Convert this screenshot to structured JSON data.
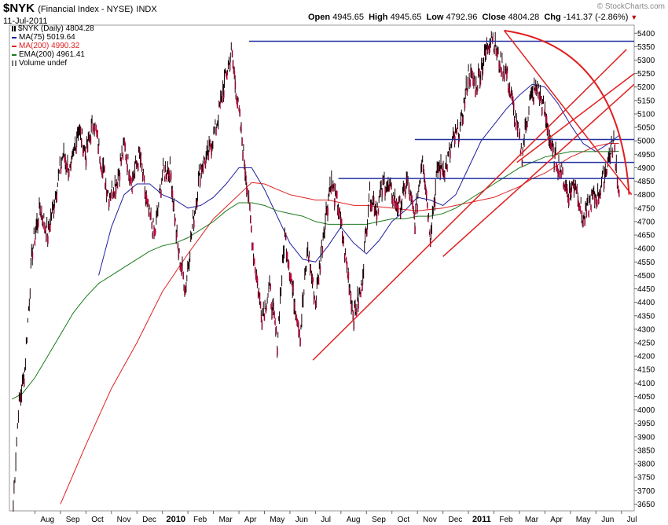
{
  "header": {
    "symbol": "$NYK",
    "name": "(Financial Index - NYSE)",
    "exchange": "INDX",
    "date": "11-Jul-2011",
    "brand": "© StockCharts.com",
    "open_label": "Open",
    "open": "4945.65",
    "high_label": "High",
    "high": "4945.65",
    "low_label": "Low",
    "low": "4792.96",
    "close_label": "Close",
    "close": "4804.28",
    "chg_label": "Chg",
    "chg": "-141.37 (-2.86%)"
  },
  "legend": [
    {
      "text": "$NYK (Daily) 4804.28",
      "color": "#000000",
      "kind": "bar"
    },
    {
      "text": "MA(75) 5019.64",
      "color": "#1f1fa0",
      "kind": "line"
    },
    {
      "text": "MA(200) 4990.32",
      "color": "#e02020",
      "kind": "line"
    },
    {
      "text": "EMA(200) 4961.41",
      "color": "#1a7a1a",
      "kind": "line"
    },
    {
      "text": "Volume undef",
      "color": "#777777",
      "kind": "vol"
    }
  ],
  "chart_data": {
    "type": "line",
    "title": "$NYK (Financial Index - NYSE)",
    "y_ticks": [
      3650,
      3700,
      3750,
      3800,
      3850,
      3900,
      3950,
      4000,
      4050,
      4100,
      4150,
      4200,
      4250,
      4300,
      4350,
      4400,
      4450,
      4500,
      4550,
      4600,
      4650,
      4700,
      4750,
      4800,
      4850,
      4900,
      4950,
      5000,
      5050,
      5100,
      5150,
      5200,
      5250,
      5300,
      5350,
      5400
    ],
    "ylim": [
      3625,
      5430
    ],
    "x_ticks": [
      "Aug",
      "Sep",
      "Oct",
      "Nov",
      "Dec",
      "2010",
      "Feb",
      "Mar",
      "Apr",
      "May",
      "Jun",
      "Jul",
      "Aug",
      "Sep",
      "Oct",
      "Nov",
      "Dec",
      "2011",
      "Feb",
      "Mar",
      "Apr",
      "May",
      "Jun",
      "Jul"
    ],
    "x_tick_bold": [
      "2010",
      "2011"
    ],
    "start_month": "Jul 2009",
    "xlim_months": [
      0,
      24.5
    ],
    "price_series": {
      "name": "$NYK (Daily)",
      "color": "#000000",
      "x_months": [
        0.15,
        0.35,
        0.6,
        0.9,
        1.2,
        1.5,
        1.8,
        2.1,
        2.4,
        2.7,
        3.0,
        3.3,
        3.6,
        3.9,
        4.2,
        4.5,
        4.8,
        5.1,
        5.4,
        5.7,
        6.0,
        6.3,
        6.6,
        6.9,
        7.2,
        7.5,
        7.8,
        8.1,
        8.4,
        8.7,
        9.0,
        9.3,
        9.6,
        9.9,
        10.2,
        10.5,
        10.8,
        11.1,
        11.4,
        11.7,
        12.0,
        12.3,
        12.6,
        12.9,
        13.2,
        13.5,
        13.8,
        14.1,
        14.4,
        14.7,
        15.0,
        15.3,
        15.6,
        15.9,
        16.2,
        16.5,
        16.8,
        17.1,
        17.4,
        17.7,
        18.0,
        18.3,
        18.6,
        18.9,
        19.2,
        19.5,
        19.8,
        20.1,
        20.4,
        20.7,
        21.0,
        21.3,
        21.6,
        21.9,
        22.2,
        22.5,
        22.8,
        23.1,
        23.4,
        23.7,
        23.9
      ],
      "values": [
        3650,
        4000,
        4150,
        4600,
        4750,
        4650,
        4800,
        4950,
        4880,
        5050,
        4950,
        5080,
        4920,
        4800,
        4850,
        4980,
        4850,
        4950,
        4750,
        4650,
        4880,
        4900,
        4600,
        4450,
        4700,
        4900,
        4950,
        5050,
        5200,
        5330,
        5100,
        4850,
        4550,
        4350,
        4450,
        4250,
        4650,
        4450,
        4280,
        4600,
        4400,
        4650,
        4850,
        4750,
        4550,
        4350,
        4450,
        4800,
        4750,
        4850,
        4800,
        4750,
        4850,
        4700,
        4950,
        4650,
        4900,
        4900,
        5000,
        5050,
        5250,
        5200,
        5300,
        5400,
        5300,
        5250,
        5100,
        4950,
        5150,
        5200,
        5100,
        4950,
        4900,
        4800,
        4850,
        4700,
        4780,
        4800,
        4900,
        5000,
        4804.28
      ]
    },
    "series": [
      {
        "name": "MA(75)",
        "color": "#1f1fa0",
        "x_months": [
          3.5,
          4.0,
          4.5,
          5.0,
          5.5,
          6.0,
          6.5,
          7.0,
          7.5,
          8.0,
          8.5,
          9.0,
          9.5,
          10.0,
          10.5,
          11.0,
          11.5,
          12.0,
          12.5,
          13.0,
          13.5,
          14.0,
          14.5,
          15.0,
          15.5,
          16.0,
          16.5,
          17.0,
          17.5,
          18.0,
          18.5,
          19.0,
          19.5,
          20.0,
          20.5,
          21.0,
          21.5,
          22.0,
          22.5,
          23.0,
          23.5,
          23.9
        ],
        "values": [
          4500,
          4680,
          4800,
          4840,
          4840,
          4800,
          4780,
          4750,
          4760,
          4790,
          4840,
          4900,
          4900,
          4820,
          4720,
          4620,
          4560,
          4550,
          4610,
          4680,
          4620,
          4580,
          4630,
          4700,
          4740,
          4790,
          4780,
          4760,
          4800,
          4900,
          5000,
          5060,
          5120,
          5170,
          5210,
          5200,
          5140,
          5060,
          4990,
          4960,
          4990,
          5019.64
        ]
      },
      {
        "name": "MA(200)",
        "color": "#e02020",
        "x_months": [
          2.0,
          3.0,
          4.0,
          5.0,
          6.0,
          7.0,
          8.0,
          9.0,
          9.5,
          10.0,
          10.5,
          11.0,
          11.5,
          12.0,
          12.5,
          13.0,
          13.5,
          14.0,
          15.0,
          16.0,
          17.0,
          18.0,
          19.0,
          20.0,
          20.5,
          21.0,
          21.5,
          22.0,
          22.5,
          23.0,
          23.5,
          23.9
        ],
        "values": [
          3650,
          3870,
          4080,
          4250,
          4440,
          4580,
          4710,
          4800,
          4845,
          4840,
          4820,
          4800,
          4790,
          4780,
          4780,
          4770,
          4760,
          4760,
          4750,
          4740,
          4750,
          4770,
          4790,
          4830,
          4860,
          4880,
          4910,
          4940,
          4960,
          4980,
          4990,
          4990.32
        ]
      },
      {
        "name": "EMA(200)",
        "color": "#1a7a1a",
        "x_months": [
          0.1,
          0.5,
          1.0,
          1.5,
          2.0,
          2.5,
          3.0,
          3.5,
          4.0,
          4.5,
          5.0,
          5.5,
          6.0,
          6.5,
          7.0,
          7.5,
          8.0,
          8.5,
          9.0,
          9.5,
          10.0,
          10.5,
          11.0,
          11.5,
          12.0,
          12.5,
          13.0,
          13.5,
          14.0,
          14.5,
          15.0,
          15.5,
          16.0,
          16.5,
          17.0,
          17.5,
          18.0,
          18.5,
          19.0,
          19.5,
          20.0,
          20.5,
          21.0,
          21.5,
          22.0,
          22.5,
          23.0,
          23.5,
          23.9
        ],
        "values": [
          4040,
          4060,
          4120,
          4200,
          4280,
          4360,
          4420,
          4470,
          4500,
          4530,
          4560,
          4590,
          4610,
          4620,
          4640,
          4670,
          4700,
          4740,
          4770,
          4770,
          4760,
          4740,
          4730,
          4720,
          4700,
          4690,
          4690,
          4690,
          4690,
          4700,
          4710,
          4710,
          4720,
          4720,
          4730,
          4750,
          4780,
          4810,
          4840,
          4870,
          4900,
          4920,
          4940,
          4950,
          4960,
          4960,
          4960,
          4960,
          4961.41
        ]
      }
    ],
    "trendlines": {
      "horizontal": [
        {
          "value": 5370,
          "x_from": 9.4,
          "x_to": 24.5,
          "color": "#2030a0"
        },
        {
          "value": 5005,
          "x_from": 15.9,
          "x_to": 24.5,
          "color": "#2030a0"
        },
        {
          "value": 4920,
          "x_from": 20.1,
          "x_to": 24.5,
          "color": "#2030a0"
        },
        {
          "value": 4860,
          "x_from": 12.9,
          "x_to": 24.5,
          "color": "#2030a0"
        }
      ],
      "diagonal": [
        {
          "from": [
            11.9,
            4185
          ],
          "to": [
            24.2,
            5340
          ],
          "color": "#e02020"
        },
        {
          "from": [
            17.0,
            4570
          ],
          "to": [
            24.5,
            5210
          ],
          "color": "#e02020"
        },
        {
          "from": [
            19.9,
            4920
          ],
          "to": [
            24.5,
            5250
          ],
          "color": "#e02020"
        },
        {
          "from": [
            19.4,
            5410
          ],
          "to": [
            24.4,
            4800
          ],
          "color": "#e02020"
        }
      ]
    }
  }
}
